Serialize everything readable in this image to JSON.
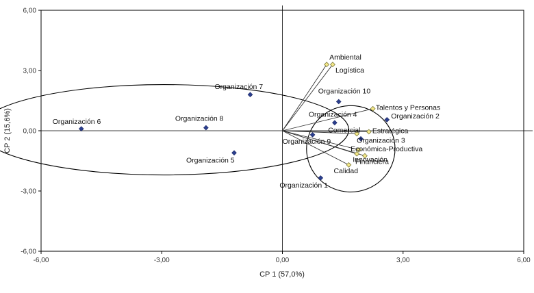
{
  "chart_data": {
    "type": "scatter",
    "xlabel": "CP 1 (57,0%)",
    "ylabel": "CP 2 (15,6%)",
    "xlim": [
      -6,
      6
    ],
    "ylim": [
      -6,
      6
    ],
    "x_ticks": [
      "-6,00",
      "-3,00",
      "0,00",
      "3,00",
      "6,00"
    ],
    "y_ticks": [
      "-6,00",
      "-3,00",
      "0,00",
      "3,00",
      "6,00"
    ],
    "grid": false,
    "colors": {
      "organization_marker": "#2b3f8f",
      "variable_marker": "#f5e88a",
      "variable_line": "#333333",
      "ellipse": "#000000"
    },
    "organizations": [
      {
        "label": "Organización 1",
        "x": 0.95,
        "y": -2.35
      },
      {
        "label": "Organización 2",
        "x": 2.6,
        "y": 0.55
      },
      {
        "label": "Organización 3",
        "x": 1.95,
        "y": -0.4
      },
      {
        "label": "Organización 4",
        "x": 1.3,
        "y": 0.4
      },
      {
        "label": "Organización 5",
        "x": -1.2,
        "y": -1.1
      },
      {
        "label": "Organización 6",
        "x": -5.0,
        "y": 0.1
      },
      {
        "label": "Organización 7",
        "x": -0.8,
        "y": 1.8
      },
      {
        "label": "Organización 8",
        "x": -1.9,
        "y": 0.15
      },
      {
        "label": "Organización 9",
        "x": 0.75,
        "y": -0.2
      },
      {
        "label": "Organización 10",
        "x": 1.4,
        "y": 1.45
      }
    ],
    "variables": [
      {
        "label": "Ambiental",
        "x": 1.1,
        "y": 3.3
      },
      {
        "label": "Logística",
        "x": 1.25,
        "y": 3.3
      },
      {
        "label": "Talentos y Personas",
        "x": 2.25,
        "y": 1.1
      },
      {
        "label": "Comercial",
        "x": 1.85,
        "y": -0.15
      },
      {
        "label": "Estratégica",
        "x": 2.15,
        "y": -0.05
      },
      {
        "label": "Económica-Productiva",
        "x": 1.9,
        "y": -0.95
      },
      {
        "label": "Innovación",
        "x": 1.85,
        "y": -1.15
      },
      {
        "label": "Financiera",
        "x": 2.05,
        "y": -1.25
      },
      {
        "label": "Calidad",
        "x": 1.65,
        "y": -1.7
      }
    ],
    "ellipses": [
      {
        "cx": -2.95,
        "cy": 0.05,
        "rx": 4.6,
        "ry": 2.25
      },
      {
        "cx": 1.7,
        "cy": -0.9,
        "rx": 1.1,
        "ry": 2.15
      }
    ]
  }
}
